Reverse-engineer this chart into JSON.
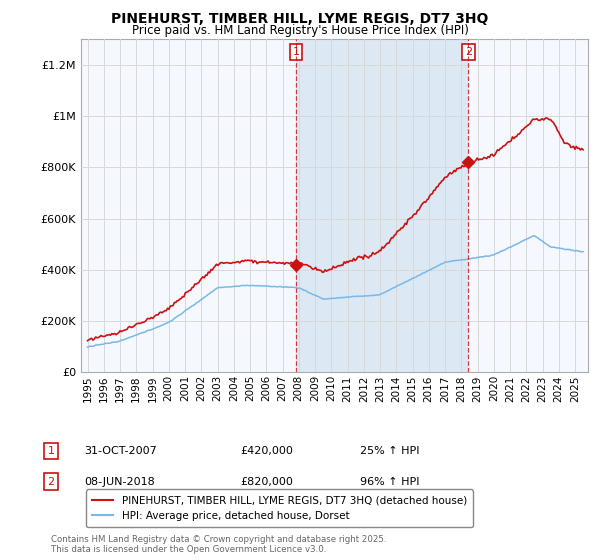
{
  "title": "PINEHURST, TIMBER HILL, LYME REGIS, DT7 3HQ",
  "subtitle": "Price paid vs. HM Land Registry's House Price Index (HPI)",
  "red_label": "PINEHURST, TIMBER HILL, LYME REGIS, DT7 3HQ (detached house)",
  "blue_label": "HPI: Average price, detached house, Dorset",
  "annotation1": {
    "num": "1",
    "date": "31-OCT-2007",
    "price": "£420,000",
    "pct": "25% ↑ HPI"
  },
  "annotation2": {
    "num": "2",
    "date": "08-JUN-2018",
    "price": "£820,000",
    "pct": "96% ↑ HPI"
  },
  "footer": "Contains HM Land Registry data © Crown copyright and database right 2025.\nThis data is licensed under the Open Government Licence v3.0.",
  "ylim": [
    0,
    1300000
  ],
  "xlim_left": 1994.6,
  "xlim_right": 2025.8,
  "background_color": "#ffffff",
  "plot_bg": "#f5f8ff",
  "grid_color": "#d8d8d8",
  "shade_color": "#dde8f5",
  "vline1_x": 2007.83,
  "vline2_x": 2018.44,
  "red_color": "#cc1111",
  "blue_color": "#7ab8e8"
}
